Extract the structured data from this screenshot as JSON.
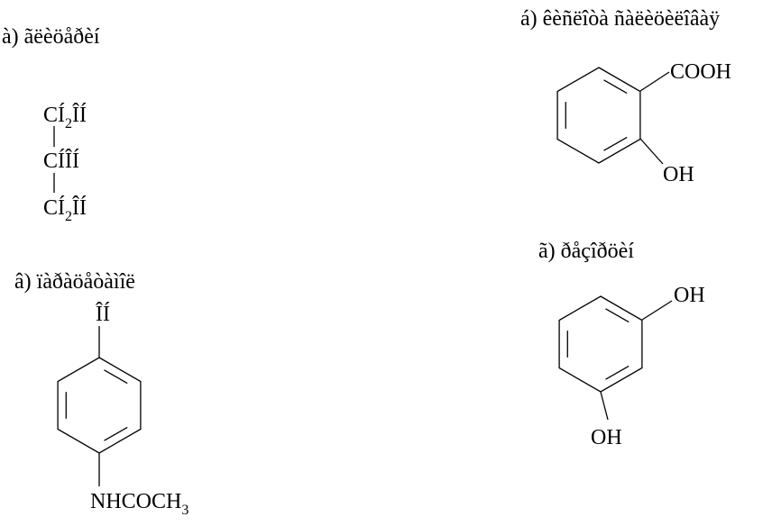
{
  "labels": {
    "a": "à)  ãëèöåðèí",
    "b": "á) êèñëîòà ñàëèöèëîâàÿ",
    "v": "â)  ïàðàöåòàìîë",
    "g": "ã)  ðåçîðöèí"
  },
  "glycerol": {
    "row1_main": "CÍ",
    "row1_sub": "2",
    "row1_end": "ÎÍ",
    "row2": "CÍÎÍ",
    "row3_main": "CÍ",
    "row3_sub": "2",
    "row3_end": "ÎÍ"
  },
  "salicylic": {
    "sub1": "COOH",
    "sub2": "OH"
  },
  "paracetamol": {
    "top": "ÎÍ",
    "bottom_main": "NHCOCH",
    "bottom_sub": "3"
  },
  "resorcinol": {
    "top": "OH",
    "bottom": "OH"
  }
}
